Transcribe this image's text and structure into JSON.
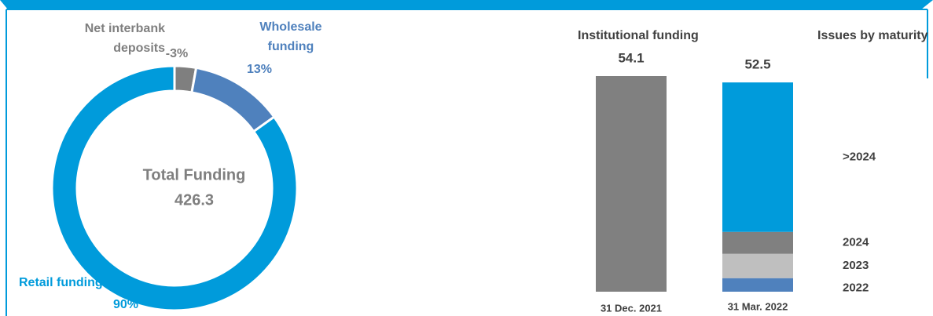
{
  "chart_data": [
    {
      "type": "donut",
      "center_label": "Total Funding",
      "total": 426.3,
      "categories": [
        "Net interbank deposits",
        "Wholesale funding",
        "Retail funding"
      ],
      "values": [
        -3,
        13,
        90
      ],
      "value_labels": [
        "-3%",
        "13%",
        "90%"
      ],
      "colors": [
        "#7f7f7f",
        "#4f81bd",
        "#009bdb"
      ]
    },
    {
      "type": "stacked_bar",
      "title": "Institutional funding",
      "legend_title": "Issues by maturity",
      "categories": [
        "31 Dec. 2021",
        "31 Mar. 2022"
      ],
      "totals": [
        54.1,
        52.5
      ],
      "series": [
        {
          "color": "#808080",
          "values": [
            54.1,
            null
          ]
        },
        {
          "name": "2022",
          "color": "#4f81bd",
          "values": [
            null,
            3.4
          ]
        },
        {
          "name": "2023",
          "color": "#bfbfbf",
          "values": [
            null,
            6.1
          ]
        },
        {
          "name": "2024",
          "color": "#808080",
          "values": [
            null,
            5.5
          ]
        },
        {
          "name": ">2024",
          "color": "#009bdb",
          "values": [
            null,
            37.5
          ]
        }
      ]
    }
  ]
}
